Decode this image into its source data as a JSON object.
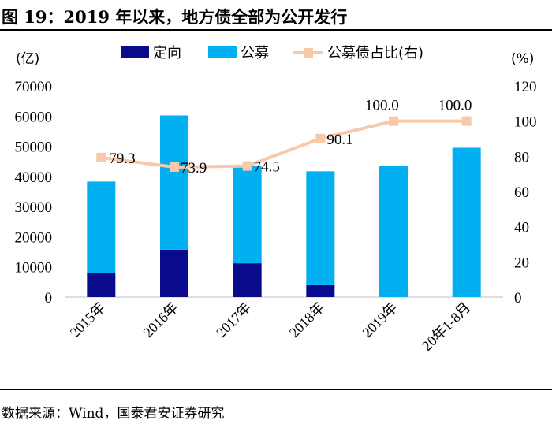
{
  "title": "图 19：2019 年以来，地方债全部为公开发行",
  "source": "数据来源：Wind，国泰君安证券研究",
  "colors": {
    "dingxiang": "#0a0a8c",
    "gongmu": "#00b0f0",
    "ratio": "#f8c8a8"
  },
  "chart_data": {
    "type": "bar",
    "stacked": true,
    "categories": [
      "2015年",
      "2016年",
      "2017年",
      "2018年",
      "2019年",
      "20年1-8月"
    ],
    "series": [
      {
        "name": "定向",
        "type": "bar",
        "axis": "left",
        "values": [
          8000,
          15700,
          11200,
          4200,
          0,
          0
        ]
      },
      {
        "name": "公募",
        "type": "bar",
        "axis": "left",
        "values": [
          30300,
          44500,
          32400,
          37500,
          43600,
          49500
        ]
      },
      {
        "name": "公募债占比(右)",
        "type": "line",
        "axis": "right",
        "values": [
          79.3,
          73.9,
          74.5,
          90.1,
          100.0,
          100.0
        ],
        "labels": [
          "79.3",
          "73.9",
          "74.5",
          "90.1",
          "100.0",
          "100.0"
        ]
      }
    ],
    "left_axis": {
      "unit": "(亿)",
      "ylim": [
        0,
        70000
      ],
      "ticks": [
        0,
        10000,
        20000,
        30000,
        40000,
        50000,
        60000,
        70000
      ],
      "tick_labels": [
        "0",
        "10000",
        "20000",
        "30000",
        "40000",
        "50000",
        "60000",
        "70000"
      ]
    },
    "right_axis": {
      "unit": "(%)",
      "ylim": [
        0,
        120
      ],
      "ticks": [
        0,
        20,
        40,
        60,
        80,
        100,
        120
      ],
      "tick_labels": [
        "0",
        "20",
        "40",
        "60",
        "80",
        "100",
        "120"
      ]
    },
    "legend": {
      "position": "top",
      "items": [
        "定向",
        "公募",
        "公募债占比(右)"
      ]
    },
    "grid": false
  }
}
